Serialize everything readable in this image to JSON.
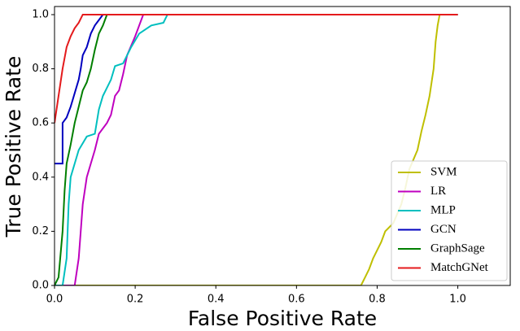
{
  "chart_data": {
    "type": "line",
    "xlabel": "False Positive Rate",
    "ylabel": "True Positive Rate",
    "xlim": [
      0,
      1.13
    ],
    "ylim": [
      0,
      1.03
    ],
    "xticks": [
      {
        "value": 0,
        "label": "0.0"
      },
      0.2,
      0.4,
      0.6,
      0.8,
      {
        "value": 1,
        "label": "1.0"
      }
    ],
    "yticks": [
      {
        "value": 0,
        "label": "0.0"
      },
      0.2,
      0.4,
      0.6,
      0.8,
      {
        "value": 1,
        "label": "1.0"
      }
    ],
    "legend": "lower right",
    "series": [
      {
        "name": "SVM",
        "color": "#bfbf00",
        "x": [
          0,
          0.76,
          0.77,
          0.78,
          0.79,
          0.8,
          0.81,
          0.82,
          0.84,
          0.86,
          0.87,
          0.88,
          0.9,
          0.91,
          0.92,
          0.93,
          0.94,
          0.945,
          0.95,
          0.955,
          1.0
        ],
        "values": [
          0,
          0,
          0.03,
          0.06,
          0.1,
          0.13,
          0.16,
          0.2,
          0.23,
          0.3,
          0.36,
          0.43,
          0.5,
          0.57,
          0.63,
          0.7,
          0.8,
          0.9,
          0.96,
          1.0,
          1.0
        ]
      },
      {
        "name": "LR",
        "color": "#bf00bf",
        "x": [
          0,
          0.05,
          0.06,
          0.07,
          0.08,
          0.09,
          0.1,
          0.11,
          0.13,
          0.14,
          0.15,
          0.16,
          0.17,
          0.18,
          0.2,
          0.21,
          0.22,
          1.0
        ],
        "values": [
          0,
          0,
          0.1,
          0.3,
          0.4,
          0.45,
          0.5,
          0.56,
          0.6,
          0.63,
          0.7,
          0.72,
          0.78,
          0.85,
          0.92,
          0.96,
          1.0,
          1.0
        ]
      },
      {
        "name": "MLP",
        "color": "#00bfbf",
        "x": [
          0,
          0.02,
          0.03,
          0.035,
          0.04,
          0.05,
          0.06,
          0.08,
          0.1,
          0.11,
          0.12,
          0.14,
          0.15,
          0.17,
          0.19,
          0.21,
          0.24,
          0.27,
          0.28,
          1.0
        ],
        "values": [
          0,
          0,
          0.1,
          0.3,
          0.4,
          0.45,
          0.5,
          0.55,
          0.56,
          0.65,
          0.7,
          0.76,
          0.81,
          0.82,
          0.88,
          0.93,
          0.96,
          0.97,
          1.0,
          1.0
        ]
      },
      {
        "name": "GCN",
        "color": "#0000bf",
        "x": [
          0,
          0.02,
          0.02,
          0.03,
          0.04,
          0.05,
          0.06,
          0.065,
          0.07,
          0.08,
          0.09,
          0.1,
          0.11,
          0.12,
          1.0
        ],
        "values": [
          0.45,
          0.45,
          0.6,
          0.62,
          0.66,
          0.71,
          0.76,
          0.8,
          0.85,
          0.88,
          0.93,
          0.96,
          0.98,
          1.0,
          1.0
        ]
      },
      {
        "name": "GraphSage",
        "color": "#007f00",
        "x": [
          0,
          0.01,
          0.02,
          0.025,
          0.03,
          0.04,
          0.05,
          0.06,
          0.07,
          0.08,
          0.09,
          0.1,
          0.11,
          0.12,
          0.13,
          1.0
        ],
        "values": [
          0,
          0.03,
          0.2,
          0.35,
          0.45,
          0.52,
          0.6,
          0.66,
          0.72,
          0.75,
          0.8,
          0.87,
          0.93,
          0.96,
          1.0,
          1.0
        ]
      },
      {
        "name": "MatchGNet",
        "color": "#e41a1c",
        "x": [
          0,
          0.01,
          0.02,
          0.03,
          0.04,
          0.05,
          0.06,
          0.07,
          1.0
        ],
        "values": [
          0.6,
          0.7,
          0.8,
          0.88,
          0.92,
          0.95,
          0.97,
          1.0,
          1.0
        ]
      }
    ]
  }
}
